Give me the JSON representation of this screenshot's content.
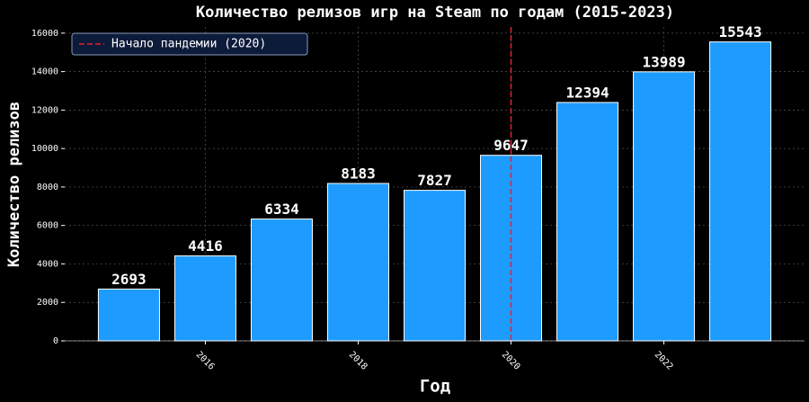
{
  "chart_data": {
    "type": "bar",
    "title": "Количество релизов игр на Steam по годам (2015-2023)",
    "x_label": "Год",
    "y_label": "Количество релизов",
    "x": [
      2015,
      2016,
      2017,
      2018,
      2019,
      2020,
      2021,
      2022,
      2023
    ],
    "values": [
      2693,
      4416,
      6334,
      8183,
      7827,
      9647,
      12394,
      13989,
      15543
    ],
    "color": "#1e9bff",
    "xlim": [
      2014.16,
      2023.84
    ],
    "xticks": [
      2016,
      2018,
      2020,
      2022
    ],
    "ylim": [
      0,
      16320
    ],
    "yticks": [
      0,
      2000,
      4000,
      6000,
      8000,
      10000,
      12000,
      14000,
      16000
    ],
    "grid": true,
    "vline": {
      "x": 2020,
      "label": "Начало пандемии (2020)",
      "color": "#e8202a"
    },
    "legend": "upper left"
  }
}
